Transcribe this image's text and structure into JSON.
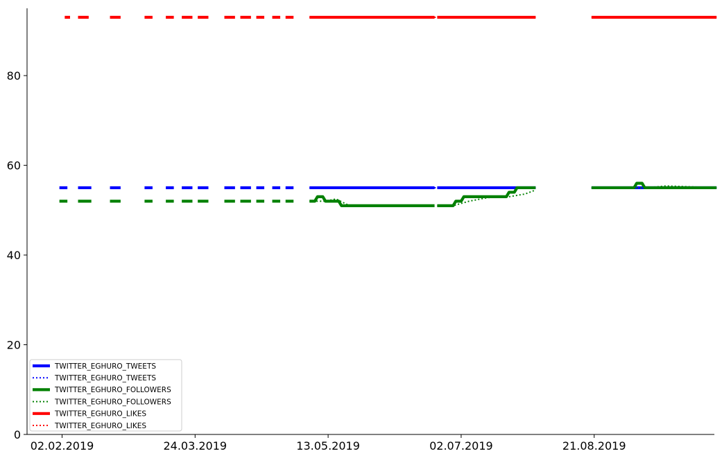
{
  "chart_data": {
    "type": "line",
    "title": "",
    "xlabel": "",
    "ylabel": "",
    "ylim": [
      0,
      95
    ],
    "y_ticks": [
      0,
      20,
      40,
      60,
      80
    ],
    "x_ticks": [
      "02.02.2019",
      "24.03.2019",
      "13.05.2019",
      "02.07.2019",
      "21.08.2019"
    ],
    "xlim": [
      "2019-01-20",
      "2019-10-25"
    ],
    "grid": false,
    "legend_position": "lower-left",
    "series": [
      {
        "name": "TWITTER_EGHURO_TWEETS",
        "style": "solid",
        "color": "#0000ff",
        "segments": [
          {
            "x": [
              "2019-02-01",
              "2019-02-04"
            ],
            "y": [
              55,
              55
            ]
          },
          {
            "x": [
              "2019-02-08",
              "2019-02-13"
            ],
            "y": [
              55,
              55
            ]
          },
          {
            "x": [
              "2019-02-20",
              "2019-02-24"
            ],
            "y": [
              55,
              55
            ]
          },
          {
            "x": [
              "2019-03-05",
              "2019-03-08"
            ],
            "y": [
              55,
              55
            ]
          },
          {
            "x": [
              "2019-03-13",
              "2019-03-16"
            ],
            "y": [
              55,
              55
            ]
          },
          {
            "x": [
              "2019-03-19",
              "2019-03-23"
            ],
            "y": [
              55,
              55
            ]
          },
          {
            "x": [
              "2019-03-25",
              "2019-03-29"
            ],
            "y": [
              55,
              55
            ]
          },
          {
            "x": [
              "2019-04-04",
              "2019-04-08"
            ],
            "y": [
              55,
              55
            ]
          },
          {
            "x": [
              "2019-04-10",
              "2019-04-14"
            ],
            "y": [
              55,
              55
            ]
          },
          {
            "x": [
              "2019-04-16",
              "2019-04-19"
            ],
            "y": [
              55,
              55
            ]
          },
          {
            "x": [
              "2019-04-22",
              "2019-04-25"
            ],
            "y": [
              55,
              55
            ]
          },
          {
            "x": [
              "2019-04-27",
              "2019-04-30"
            ],
            "y": [
              55,
              55
            ]
          },
          {
            "x": [
              "2019-05-06",
              "2019-06-22"
            ],
            "y": [
              55,
              55
            ]
          },
          {
            "x": [
              "2019-06-23",
              "2019-07-30"
            ],
            "y": [
              55,
              55
            ]
          },
          {
            "x": [
              "2019-08-20",
              "2019-10-06"
            ],
            "y": [
              55,
              55
            ]
          }
        ]
      },
      {
        "name": "TWITTER_EGHURO_TWEETS",
        "style": "dotted",
        "color": "#0000ff",
        "segments": [
          {
            "x": [
              "2019-05-06",
              "2019-07-30"
            ],
            "y": [
              55,
              55
            ]
          },
          {
            "x": [
              "2019-08-20",
              "2019-10-06"
            ],
            "y": [
              55,
              55
            ]
          }
        ]
      },
      {
        "name": "TWITTER_EGHURO_FOLLOWERS",
        "style": "solid",
        "color": "#008000",
        "segments": [
          {
            "x": [
              "2019-02-01",
              "2019-02-04"
            ],
            "y": [
              52,
              52
            ]
          },
          {
            "x": [
              "2019-02-08",
              "2019-02-13"
            ],
            "y": [
              52,
              52
            ]
          },
          {
            "x": [
              "2019-02-20",
              "2019-02-24"
            ],
            "y": [
              52,
              52
            ]
          },
          {
            "x": [
              "2019-03-05",
              "2019-03-08"
            ],
            "y": [
              52,
              52
            ]
          },
          {
            "x": [
              "2019-03-13",
              "2019-03-16"
            ],
            "y": [
              52,
              52
            ]
          },
          {
            "x": [
              "2019-03-19",
              "2019-03-23"
            ],
            "y": [
              52,
              52
            ]
          },
          {
            "x": [
              "2019-03-25",
              "2019-03-29"
            ],
            "y": [
              52,
              52
            ]
          },
          {
            "x": [
              "2019-04-04",
              "2019-04-08"
            ],
            "y": [
              52,
              52
            ]
          },
          {
            "x": [
              "2019-04-10",
              "2019-04-14"
            ],
            "y": [
              52,
              52
            ]
          },
          {
            "x": [
              "2019-04-16",
              "2019-04-19"
            ],
            "y": [
              52,
              52
            ]
          },
          {
            "x": [
              "2019-04-22",
              "2019-04-25"
            ],
            "y": [
              52,
              52
            ]
          },
          {
            "x": [
              "2019-04-27",
              "2019-04-30"
            ],
            "y": [
              52,
              52
            ]
          },
          {
            "x": [
              "2019-05-06",
              "2019-05-08",
              "2019-05-09",
              "2019-05-11",
              "2019-05-12",
              "2019-05-17",
              "2019-05-18",
              "2019-06-22"
            ],
            "y": [
              52,
              52,
              53,
              53,
              52,
              52,
              51,
              51
            ]
          },
          {
            "x": [
              "2019-06-23",
              "2019-06-29",
              "2019-06-30",
              "2019-07-02",
              "2019-07-03",
              "2019-07-19",
              "2019-07-20",
              "2019-07-22",
              "2019-07-23",
              "2019-07-30"
            ],
            "y": [
              51,
              51,
              52,
              52,
              53,
              53,
              54,
              54,
              55,
              55
            ]
          },
          {
            "x": [
              "2019-08-20",
              "2019-09-05",
              "2019-09-06",
              "2019-09-08",
              "2019-09-09",
              "2019-10-06"
            ],
            "y": [
              55,
              55,
              56,
              56,
              55,
              55
            ]
          }
        ]
      },
      {
        "name": "TWITTER_EGHURO_FOLLOWERS",
        "style": "dotted",
        "color": "#008000",
        "segments": [
          {
            "x": [
              "2019-05-06",
              "2019-05-12",
              "2019-05-16",
              "2019-05-21",
              "2019-06-22"
            ],
            "y": [
              52,
              52,
              52.5,
              51,
              51
            ]
          },
          {
            "x": [
              "2019-06-23",
              "2019-06-29",
              "2019-07-05",
              "2019-07-12",
              "2019-07-20",
              "2019-07-26",
              "2019-07-30"
            ],
            "y": [
              51,
              51,
              52,
              52.8,
              53,
              53.6,
              54.5
            ]
          },
          {
            "x": [
              "2019-08-20",
              "2019-09-10",
              "2019-09-17",
              "2019-10-06"
            ],
            "y": [
              55,
              55,
              55.4,
              55
            ]
          }
        ]
      },
      {
        "name": "TWITTER_EGHURO_LIKES",
        "style": "solid",
        "color": "#ff0000",
        "segments": [
          {
            "x": [
              "2019-02-03",
              "2019-02-05"
            ],
            "y": [
              93,
              93
            ]
          },
          {
            "x": [
              "2019-02-08",
              "2019-02-12"
            ],
            "y": [
              93,
              93
            ]
          },
          {
            "x": [
              "2019-02-20",
              "2019-02-24"
            ],
            "y": [
              93,
              93
            ]
          },
          {
            "x": [
              "2019-03-05",
              "2019-03-08"
            ],
            "y": [
              93,
              93
            ]
          },
          {
            "x": [
              "2019-03-13",
              "2019-03-16"
            ],
            "y": [
              93,
              93
            ]
          },
          {
            "x": [
              "2019-03-19",
              "2019-03-23"
            ],
            "y": [
              93,
              93
            ]
          },
          {
            "x": [
              "2019-03-25",
              "2019-03-29"
            ],
            "y": [
              93,
              93
            ]
          },
          {
            "x": [
              "2019-04-04",
              "2019-04-08"
            ],
            "y": [
              93,
              93
            ]
          },
          {
            "x": [
              "2019-04-10",
              "2019-04-14"
            ],
            "y": [
              93,
              93
            ]
          },
          {
            "x": [
              "2019-04-16",
              "2019-04-19"
            ],
            "y": [
              93,
              93
            ]
          },
          {
            "x": [
              "2019-04-22",
              "2019-04-25"
            ],
            "y": [
              93,
              93
            ]
          },
          {
            "x": [
              "2019-04-27",
              "2019-04-30"
            ],
            "y": [
              93,
              93
            ]
          },
          {
            "x": [
              "2019-05-06",
              "2019-06-22"
            ],
            "y": [
              93,
              93
            ]
          },
          {
            "x": [
              "2019-06-23",
              "2019-07-30"
            ],
            "y": [
              93,
              93
            ]
          },
          {
            "x": [
              "2019-08-20",
              "2019-10-06"
            ],
            "y": [
              93,
              93
            ]
          }
        ]
      },
      {
        "name": "TWITTER_EGHURO_LIKES",
        "style": "dotted",
        "color": "#ff0000",
        "segments": [
          {
            "x": [
              "2019-05-06",
              "2019-07-30"
            ],
            "y": [
              93,
              93
            ]
          },
          {
            "x": [
              "2019-08-20",
              "2019-10-06"
            ],
            "y": [
              93,
              93
            ]
          }
        ]
      }
    ]
  }
}
